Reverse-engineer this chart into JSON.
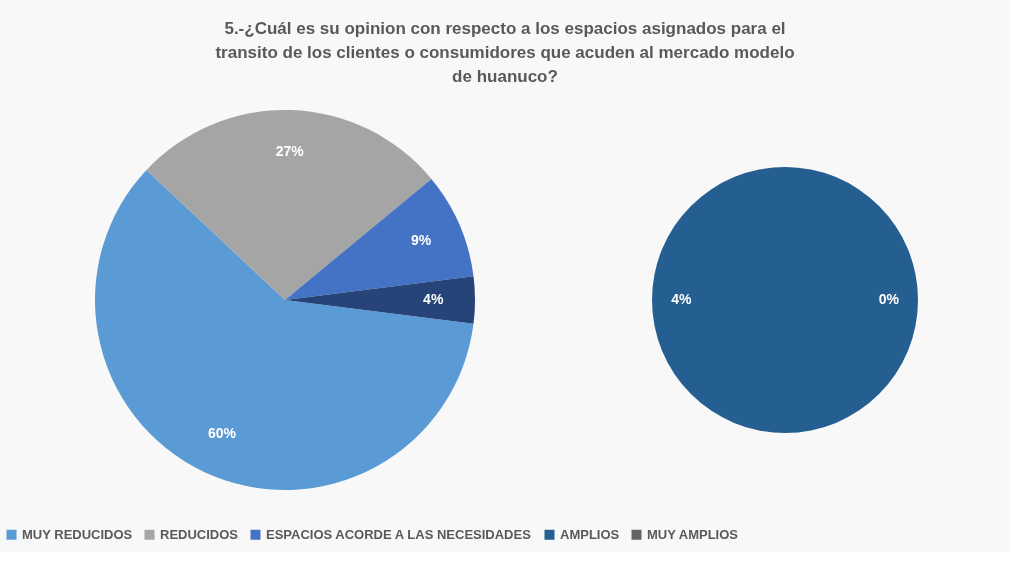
{
  "chart_data": [
    {
      "type": "pie",
      "title": "5.-¿Cuál es su opinion con respecto a los espacios asignados para el transito de los clientes o consumidores que acuden al mercado modelo de huanuco?",
      "categories": [
        "MUY REDUCIDOS",
        "REDUCIDOS",
        "ESPACIOS ACORDE A LAS NECESIDADES",
        null
      ],
      "values": [
        60,
        27,
        9,
        4
      ],
      "colors": [
        "#5b9bd5",
        "#a5a5a5",
        "#4472c4",
        "#264478"
      ],
      "value_labels": [
        "60%",
        "27%",
        "9%",
        "4%"
      ],
      "legend": "bottom"
    },
    {
      "type": "pie",
      "categories": [
        "AMPLIOS",
        "MUY AMPLIOS"
      ],
      "values": [
        4,
        0
      ],
      "colors": [
        "#255e91",
        "#636363"
      ],
      "value_labels": [
        "4%",
        "0%"
      ],
      "legend": "bottom"
    }
  ]
}
